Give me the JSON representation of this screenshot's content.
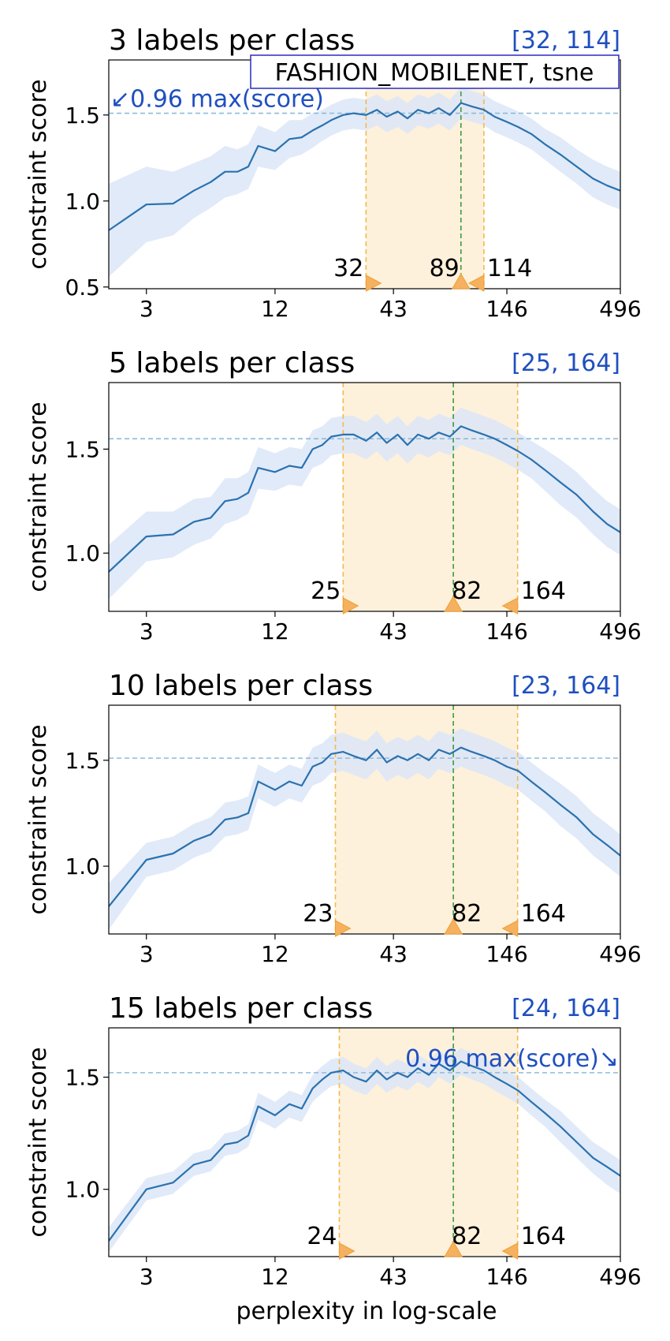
{
  "figure": {
    "xlabel": "perplexity in log-scale",
    "ylabel": "constraint score"
  },
  "chart_data": [
    {
      "type": "line",
      "title": "3 labels per class",
      "range_label": "[32, 114]",
      "legend_box": "FASHION_MOBILENET, tsne",
      "threshold_note": "↙0.96 max(score)",
      "note_position": "top-left",
      "xscale": "log",
      "xlim": [
        2,
        496
      ],
      "ylim": [
        0.49,
        1.82
      ],
      "xticks": [
        3,
        12,
        43,
        146,
        496
      ],
      "yticks": [
        0.5,
        1.0,
        1.5
      ],
      "threshold": 1.51,
      "best_perplexity": 89,
      "range": [
        32,
        114
      ],
      "marker_labels": [
        "32",
        "89",
        "114"
      ],
      "series": [
        {
          "x": [
            2,
            3,
            4,
            5,
            6,
            7,
            8,
            9,
            10,
            12,
            14,
            16,
            18,
            20,
            22,
            25,
            28,
            32,
            36,
            40,
            45,
            50,
            56,
            63,
            70,
            79,
            89,
            100,
            114,
            128,
            146,
            165,
            190,
            220,
            260,
            310,
            370,
            430,
            496
          ],
          "y": [
            0.83,
            0.98,
            0.985,
            1.06,
            1.11,
            1.17,
            1.17,
            1.2,
            1.32,
            1.29,
            1.36,
            1.37,
            1.41,
            1.44,
            1.47,
            1.5,
            1.51,
            1.5,
            1.53,
            1.49,
            1.52,
            1.48,
            1.53,
            1.51,
            1.54,
            1.5,
            1.57,
            1.55,
            1.53,
            1.49,
            1.46,
            1.43,
            1.39,
            1.33,
            1.27,
            1.2,
            1.13,
            1.09,
            1.06
          ],
          "band_low": [
            0.56,
            0.76,
            0.8,
            0.9,
            0.96,
            1.02,
            1.04,
            1.07,
            1.2,
            1.18,
            1.25,
            1.27,
            1.31,
            1.35,
            1.38,
            1.41,
            1.42,
            1.41,
            1.44,
            1.4,
            1.43,
            1.39,
            1.44,
            1.42,
            1.45,
            1.41,
            1.48,
            1.46,
            1.44,
            1.4,
            1.37,
            1.34,
            1.3,
            1.24,
            1.17,
            1.1,
            1.02,
            0.98,
            0.95
          ],
          "band_high": [
            1.1,
            1.2,
            1.17,
            1.22,
            1.26,
            1.32,
            1.3,
            1.33,
            1.44,
            1.4,
            1.47,
            1.47,
            1.51,
            1.53,
            1.56,
            1.59,
            1.6,
            1.59,
            1.62,
            1.58,
            1.61,
            1.57,
            1.62,
            1.6,
            1.63,
            1.59,
            1.66,
            1.64,
            1.62,
            1.58,
            1.55,
            1.52,
            1.48,
            1.42,
            1.37,
            1.3,
            1.24,
            1.2,
            1.17
          ]
        }
      ]
    },
    {
      "type": "line",
      "title": "5 labels per class",
      "range_label": "[25, 164]",
      "legend_box": "",
      "threshold_note": "",
      "note_position": "",
      "xscale": "log",
      "xlim": [
        2,
        496
      ],
      "ylim": [
        0.72,
        1.82
      ],
      "xticks": [
        3,
        12,
        43,
        146,
        496
      ],
      "yticks": [
        1.0,
        1.5
      ],
      "threshold": 1.55,
      "best_perplexity": 82,
      "range": [
        25,
        164
      ],
      "marker_labels": [
        "25",
        "82",
        "164"
      ],
      "series": [
        {
          "x": [
            2,
            3,
            4,
            5,
            6,
            7,
            8,
            9,
            10,
            12,
            14,
            16,
            18,
            20,
            22,
            25,
            28,
            32,
            36,
            40,
            45,
            50,
            56,
            63,
            70,
            79,
            89,
            100,
            114,
            128,
            146,
            165,
            190,
            220,
            260,
            310,
            370,
            430,
            496
          ],
          "y": [
            0.91,
            1.08,
            1.09,
            1.15,
            1.17,
            1.25,
            1.26,
            1.29,
            1.41,
            1.39,
            1.42,
            1.41,
            1.5,
            1.52,
            1.56,
            1.57,
            1.57,
            1.54,
            1.58,
            1.53,
            1.57,
            1.52,
            1.57,
            1.55,
            1.58,
            1.56,
            1.61,
            1.59,
            1.57,
            1.55,
            1.52,
            1.49,
            1.45,
            1.4,
            1.34,
            1.28,
            1.2,
            1.14,
            1.1
          ],
          "band_low": [
            0.78,
            0.96,
            0.98,
            1.04,
            1.07,
            1.14,
            1.16,
            1.19,
            1.31,
            1.3,
            1.33,
            1.32,
            1.41,
            1.43,
            1.47,
            1.48,
            1.48,
            1.45,
            1.49,
            1.44,
            1.48,
            1.43,
            1.48,
            1.46,
            1.49,
            1.47,
            1.52,
            1.5,
            1.48,
            1.46,
            1.43,
            1.4,
            1.36,
            1.3,
            1.23,
            1.17,
            1.09,
            1.03,
            0.99
          ],
          "band_high": [
            1.04,
            1.2,
            1.2,
            1.26,
            1.27,
            1.36,
            1.36,
            1.39,
            1.51,
            1.48,
            1.51,
            1.5,
            1.59,
            1.61,
            1.65,
            1.66,
            1.66,
            1.63,
            1.67,
            1.62,
            1.66,
            1.61,
            1.66,
            1.64,
            1.67,
            1.65,
            1.7,
            1.68,
            1.66,
            1.64,
            1.61,
            1.58,
            1.54,
            1.5,
            1.45,
            1.39,
            1.31,
            1.25,
            1.21
          ]
        }
      ]
    },
    {
      "type": "line",
      "title": "10 labels per class",
      "range_label": "[23, 164]",
      "legend_box": "",
      "threshold_note": "",
      "note_position": "",
      "xscale": "log",
      "xlim": [
        2,
        496
      ],
      "ylim": [
        0.68,
        1.76
      ],
      "xticks": [
        3,
        12,
        43,
        146,
        496
      ],
      "yticks": [
        1.0,
        1.5
      ],
      "threshold": 1.51,
      "best_perplexity": 82,
      "range": [
        23,
        164
      ],
      "marker_labels": [
        "23",
        "82",
        "164"
      ],
      "series": [
        {
          "x": [
            2,
            3,
            4,
            5,
            6,
            7,
            8,
            9,
            10,
            12,
            14,
            16,
            18,
            20,
            22,
            25,
            28,
            32,
            36,
            40,
            45,
            50,
            56,
            63,
            70,
            79,
            89,
            100,
            114,
            128,
            146,
            165,
            190,
            220,
            260,
            310,
            370,
            430,
            496
          ],
          "y": [
            0.81,
            1.03,
            1.06,
            1.12,
            1.15,
            1.22,
            1.23,
            1.25,
            1.4,
            1.36,
            1.4,
            1.38,
            1.47,
            1.49,
            1.53,
            1.54,
            1.52,
            1.5,
            1.55,
            1.49,
            1.52,
            1.5,
            1.53,
            1.5,
            1.55,
            1.53,
            1.56,
            1.54,
            1.52,
            1.5,
            1.47,
            1.45,
            1.4,
            1.35,
            1.29,
            1.23,
            1.15,
            1.1,
            1.05
          ],
          "band_low": [
            0.7,
            0.95,
            0.98,
            1.04,
            1.07,
            1.14,
            1.15,
            1.17,
            1.32,
            1.28,
            1.32,
            1.3,
            1.38,
            1.4,
            1.44,
            1.45,
            1.43,
            1.41,
            1.46,
            1.4,
            1.43,
            1.41,
            1.44,
            1.41,
            1.46,
            1.44,
            1.47,
            1.45,
            1.43,
            1.41,
            1.38,
            1.36,
            1.31,
            1.26,
            1.19,
            1.13,
            1.05,
            1.0,
            0.95
          ],
          "band_high": [
            0.92,
            1.11,
            1.14,
            1.2,
            1.23,
            1.3,
            1.31,
            1.33,
            1.48,
            1.44,
            1.48,
            1.46,
            1.56,
            1.58,
            1.62,
            1.63,
            1.61,
            1.59,
            1.64,
            1.58,
            1.61,
            1.59,
            1.62,
            1.59,
            1.64,
            1.62,
            1.65,
            1.63,
            1.61,
            1.59,
            1.56,
            1.54,
            1.49,
            1.44,
            1.39,
            1.33,
            1.25,
            1.2,
            1.15
          ]
        }
      ]
    },
    {
      "type": "line",
      "title": "15 labels per class",
      "range_label": "[24, 164]",
      "legend_box": "",
      "threshold_note": "0.96 max(score)↘",
      "note_position": "top-right",
      "xscale": "log",
      "xlim": [
        2,
        496
      ],
      "ylim": [
        0.7,
        1.72
      ],
      "xticks": [
        3,
        12,
        43,
        146,
        496
      ],
      "yticks": [
        1.0,
        1.5
      ],
      "threshold": 1.52,
      "best_perplexity": 82,
      "range": [
        24,
        164
      ],
      "marker_labels": [
        "24",
        "82",
        "164"
      ],
      "series": [
        {
          "x": [
            2,
            3,
            4,
            5,
            6,
            7,
            8,
            9,
            10,
            12,
            14,
            16,
            18,
            20,
            22,
            25,
            28,
            32,
            36,
            40,
            45,
            50,
            56,
            63,
            70,
            79,
            89,
            100,
            114,
            128,
            146,
            165,
            190,
            220,
            260,
            310,
            370,
            430,
            496
          ],
          "y": [
            0.77,
            1.0,
            1.03,
            1.11,
            1.13,
            1.2,
            1.21,
            1.24,
            1.37,
            1.33,
            1.38,
            1.36,
            1.45,
            1.49,
            1.52,
            1.53,
            1.5,
            1.48,
            1.53,
            1.49,
            1.52,
            1.5,
            1.54,
            1.51,
            1.56,
            1.53,
            1.57,
            1.55,
            1.53,
            1.5,
            1.47,
            1.44,
            1.39,
            1.34,
            1.28,
            1.21,
            1.14,
            1.1,
            1.06
          ],
          "band_low": [
            0.72,
            0.95,
            0.98,
            1.06,
            1.08,
            1.15,
            1.16,
            1.19,
            1.31,
            1.27,
            1.32,
            1.3,
            1.39,
            1.43,
            1.46,
            1.47,
            1.44,
            1.42,
            1.47,
            1.43,
            1.46,
            1.44,
            1.48,
            1.45,
            1.5,
            1.47,
            1.51,
            1.49,
            1.47,
            1.44,
            1.41,
            1.38,
            1.33,
            1.28,
            1.21,
            1.14,
            1.07,
            1.02,
            0.98
          ],
          "band_high": [
            0.83,
            1.05,
            1.08,
            1.16,
            1.18,
            1.25,
            1.26,
            1.29,
            1.43,
            1.39,
            1.44,
            1.42,
            1.51,
            1.55,
            1.58,
            1.59,
            1.56,
            1.54,
            1.59,
            1.55,
            1.58,
            1.56,
            1.6,
            1.57,
            1.62,
            1.59,
            1.63,
            1.61,
            1.59,
            1.56,
            1.53,
            1.5,
            1.45,
            1.4,
            1.35,
            1.28,
            1.21,
            1.17,
            1.13
          ]
        }
      ]
    }
  ],
  "colors": {
    "line": "#2a72b0",
    "band": "#dce6f7",
    "range_fill": "#fdf1dc",
    "range_line": "#f5b94a",
    "best_line": "#3f9a3f",
    "threshold": "#8fbbd9",
    "marker": "#f5b060",
    "range_text": "#1f4fbf"
  }
}
